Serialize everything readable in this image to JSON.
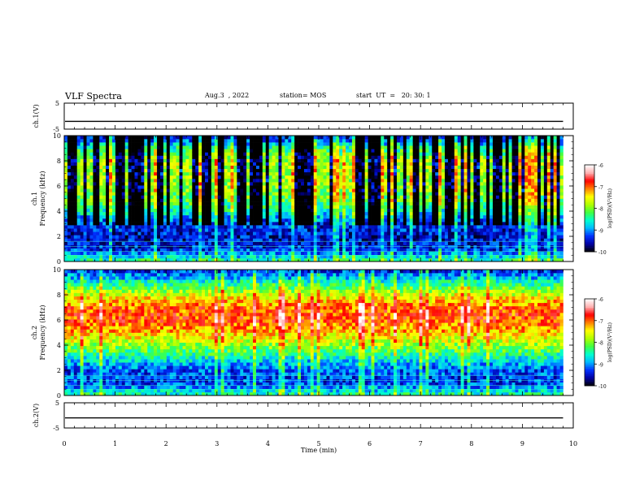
{
  "header": {
    "title": "VLF Spectra",
    "date": "Aug.3  , 2022",
    "station": "station= MOS",
    "start_ut": "start  UT  =   20: 30: 1"
  },
  "chart_data": [
    {
      "type": "line",
      "panel": "ch1-waveform",
      "ylabel": "ch.1(V)",
      "ylim": [
        -5,
        5
      ],
      "yticks": [
        "5",
        "-5"
      ],
      "xlim": [
        0,
        10
      ],
      "series": [
        {
          "values_description": "near-constant trace",
          "level": -2.0,
          "x_end": 9.8
        }
      ]
    },
    {
      "type": "heatmap",
      "panel": "ch1-spectrogram",
      "ylabel": "ch.1\nFrequency  (kHz)",
      "ylim": [
        0,
        10
      ],
      "yticks": [
        "0",
        "2",
        "4",
        "6",
        "8",
        "10"
      ],
      "xlim": [
        0,
        10
      ],
      "x_end": 9.8,
      "colorbar": {
        "label": "log(PSD)(V²/Hz)",
        "range": [
          -10,
          -6
        ],
        "ticks": [
          "-6",
          "-7",
          "-8",
          "-9",
          "-10"
        ]
      },
      "profile": {
        "freq_khz": [
          0,
          1,
          2,
          3,
          4,
          5,
          6,
          7,
          8,
          9,
          10
        ],
        "log_psd": [
          -8.3,
          -9.4,
          -9.5,
          -9.3,
          -8.6,
          -8.1,
          -7.9,
          -7.8,
          -7.8,
          -8.4,
          -9.6
        ]
      }
    },
    {
      "type": "heatmap",
      "panel": "ch2-spectrogram",
      "ylabel": "ch.2\nFrequency  (kHz)",
      "ylim": [
        0,
        10
      ],
      "yticks": [
        "0",
        "2",
        "4",
        "6",
        "8",
        "10"
      ],
      "xlim": [
        0,
        10
      ],
      "x_end": 9.8,
      "colorbar": {
        "label": "log(PSD)(V²/Hz)",
        "range": [
          -10,
          -6
        ],
        "ticks": [
          "-6",
          "-7",
          "-8",
          "-9",
          "-10"
        ]
      },
      "profile": {
        "freq_khz": [
          0,
          1,
          2,
          3,
          4,
          5,
          6,
          7,
          8,
          9,
          10
        ],
        "log_psd": [
          -8.4,
          -9.3,
          -9.2,
          -8.6,
          -7.9,
          -7.3,
          -6.9,
          -7.0,
          -7.6,
          -8.5,
          -9.4
        ]
      }
    },
    {
      "type": "line",
      "panel": "ch2-waveform",
      "ylabel": "ch.2(V)",
      "ylim": [
        -5,
        5
      ],
      "yticks": [
        "5",
        "-5"
      ],
      "xlim": [
        0,
        10
      ],
      "series": [
        {
          "values_description": "near-constant trace",
          "level": -1.0,
          "x_end": 9.8
        }
      ]
    }
  ],
  "xaxis": {
    "label": "Time  (min)",
    "ticks": [
      "0",
      "1",
      "2",
      "3",
      "4",
      "5",
      "6",
      "7",
      "8",
      "9",
      "10"
    ]
  },
  "colors": {
    "background": "#ffffff",
    "axes": "#000000",
    "colormap": [
      "#000000",
      "#0000a0",
      "#0030ff",
      "#00b8ff",
      "#00ffd0",
      "#40ff40",
      "#b0ff00",
      "#ffff00",
      "#ff8000",
      "#ff0000",
      "#ffb0b0",
      "#ffffff"
    ]
  }
}
